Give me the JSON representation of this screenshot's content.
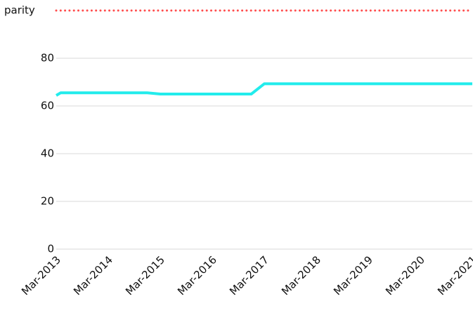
{
  "chart_data": {
    "type": "line",
    "reference_line": {
      "label": "parity",
      "value": 100,
      "color": "#ff4d4d"
    },
    "x": [
      "Mar-2013",
      "Apr-2013",
      "Dec-2014",
      "Mar-2015",
      "Dec-2016",
      "Mar-2017",
      "Mar-2021"
    ],
    "series": [
      {
        "color": "#22ecec",
        "values": [
          64.4,
          65.5,
          65.5,
          65,
          65,
          69.3,
          69.3
        ]
      }
    ],
    "xlim": [
      "Mar-2013",
      "Mar-2021"
    ],
    "xticks": [
      "Mar-2013",
      "Mar-2014",
      "Mar-2015",
      "Mar-2016",
      "Mar-2017",
      "Mar-2018",
      "Mar-2019",
      "Mar-2020",
      "Mar-2021"
    ],
    "ylim": [
      0,
      100
    ],
    "yticks": [
      0,
      20,
      40,
      60,
      80
    ],
    "grid": true
  }
}
